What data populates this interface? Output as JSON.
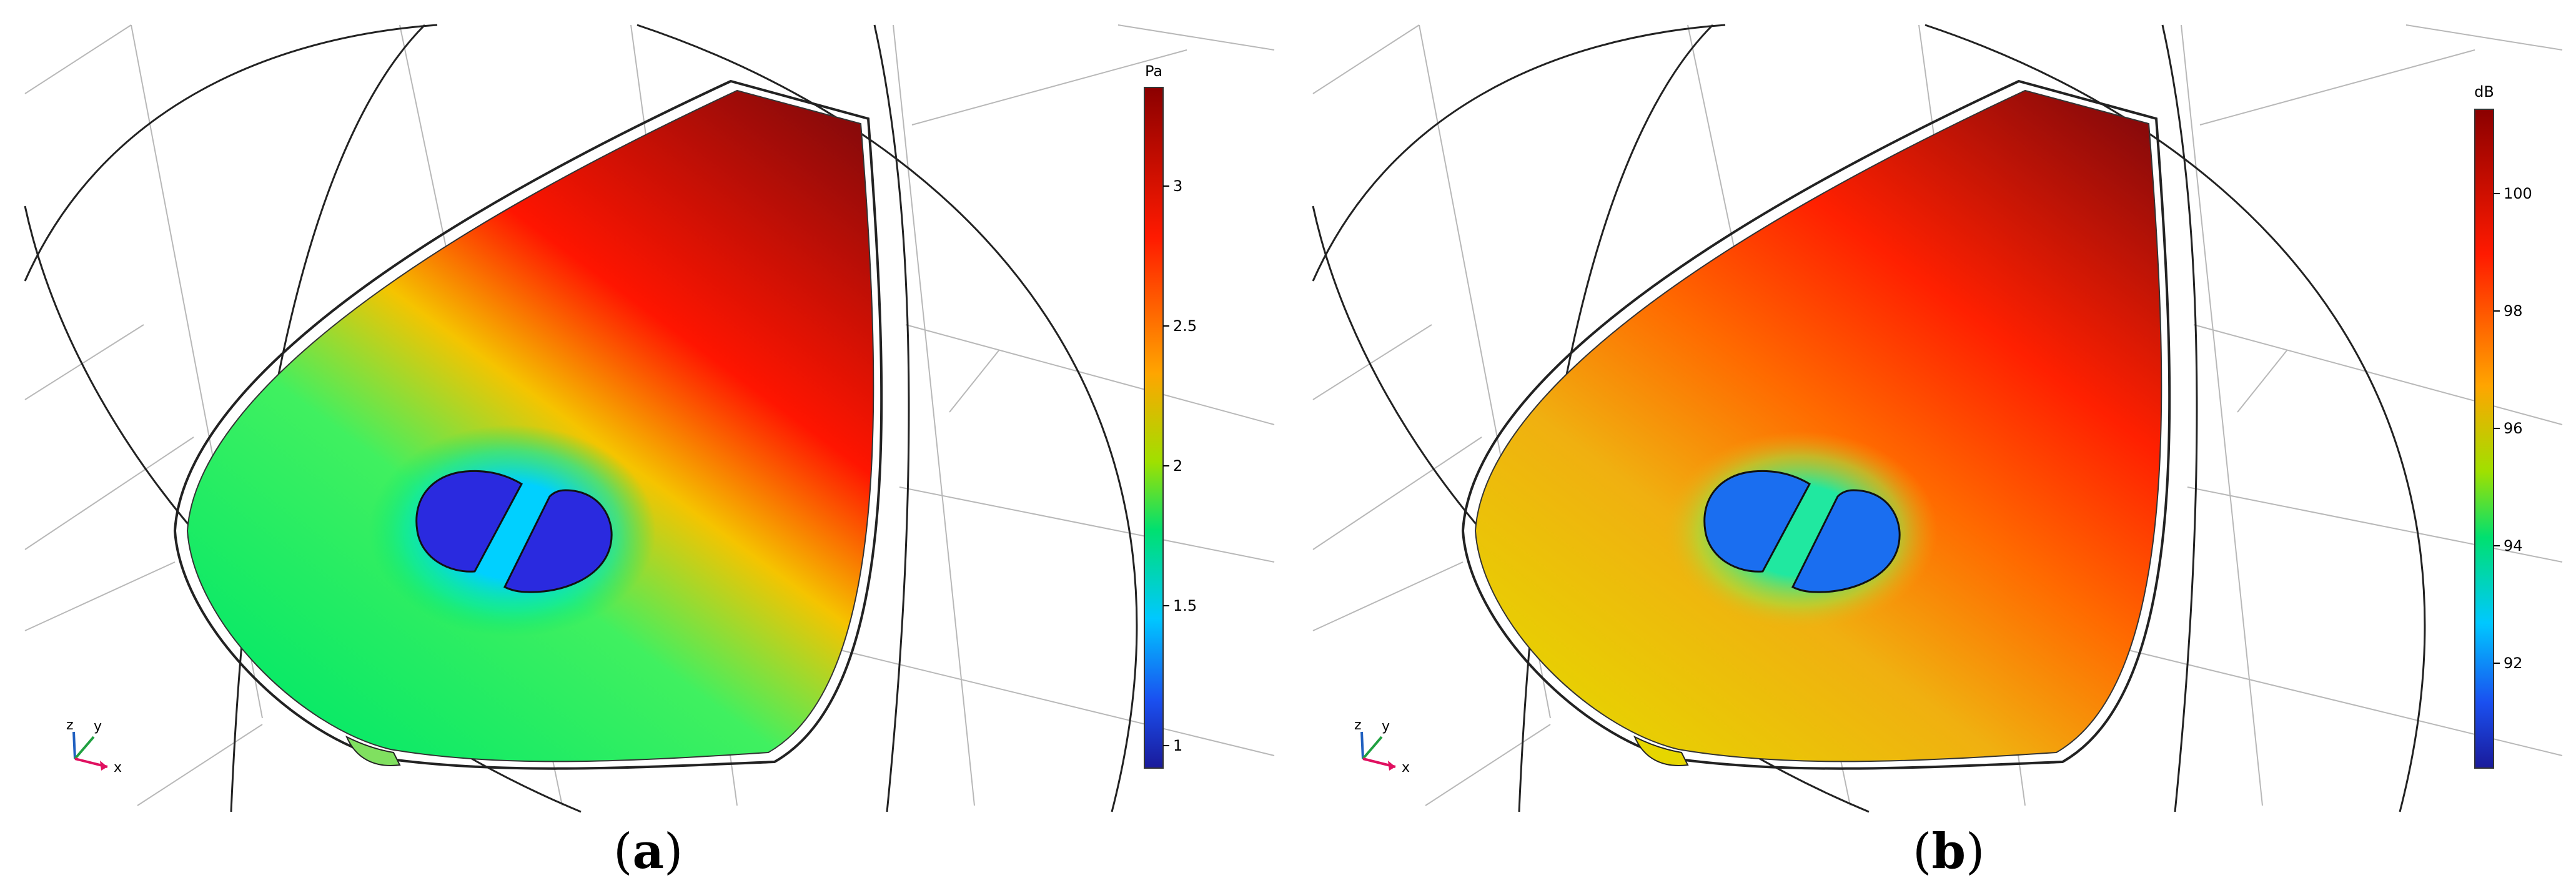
{
  "panels": [
    {
      "id": "a",
      "caption_letter": "a",
      "colorbar": {
        "unit": "Pa",
        "ticks": [
          "3",
          "2.5",
          "2",
          "1.5",
          "1"
        ],
        "colors": {
          "top": "#8b0000",
          "mid_high": "#ff1a00",
          "mid": "#ffa500",
          "mid_low": "#00e070",
          "low": "#00a0ff",
          "bottom": "#1a1ab0"
        }
      },
      "field_colors": {
        "far": "#9a0a0a",
        "upper": "#ff1500",
        "middle": "#f5c400",
        "lower": "#00e868",
        "hole": "#2a2adf",
        "halo": "#00d0ff"
      },
      "axes": {
        "z": "z",
        "y": "y",
        "x": "x"
      }
    },
    {
      "id": "b",
      "caption_letter": "b",
      "colorbar": {
        "unit": "dB",
        "ticks": [
          "100",
          "98",
          "96",
          "94",
          "92"
        ],
        "colors": {
          "top": "#8b0000",
          "mid_high": "#ff1a00",
          "mid": "#ffa500",
          "mid_low": "#00e070",
          "low": "#00a0ff",
          "bottom": "#1a1ab0"
        }
      },
      "field_colors": {
        "far": "#9a0a0a",
        "upper": "#ff2200",
        "middle": "#f59a10",
        "lower": "#e6d600",
        "hole": "#1a6ef0",
        "halo": "#20e8a0"
      },
      "axes": {
        "z": "z",
        "y": "y",
        "x": "x"
      }
    }
  ]
}
